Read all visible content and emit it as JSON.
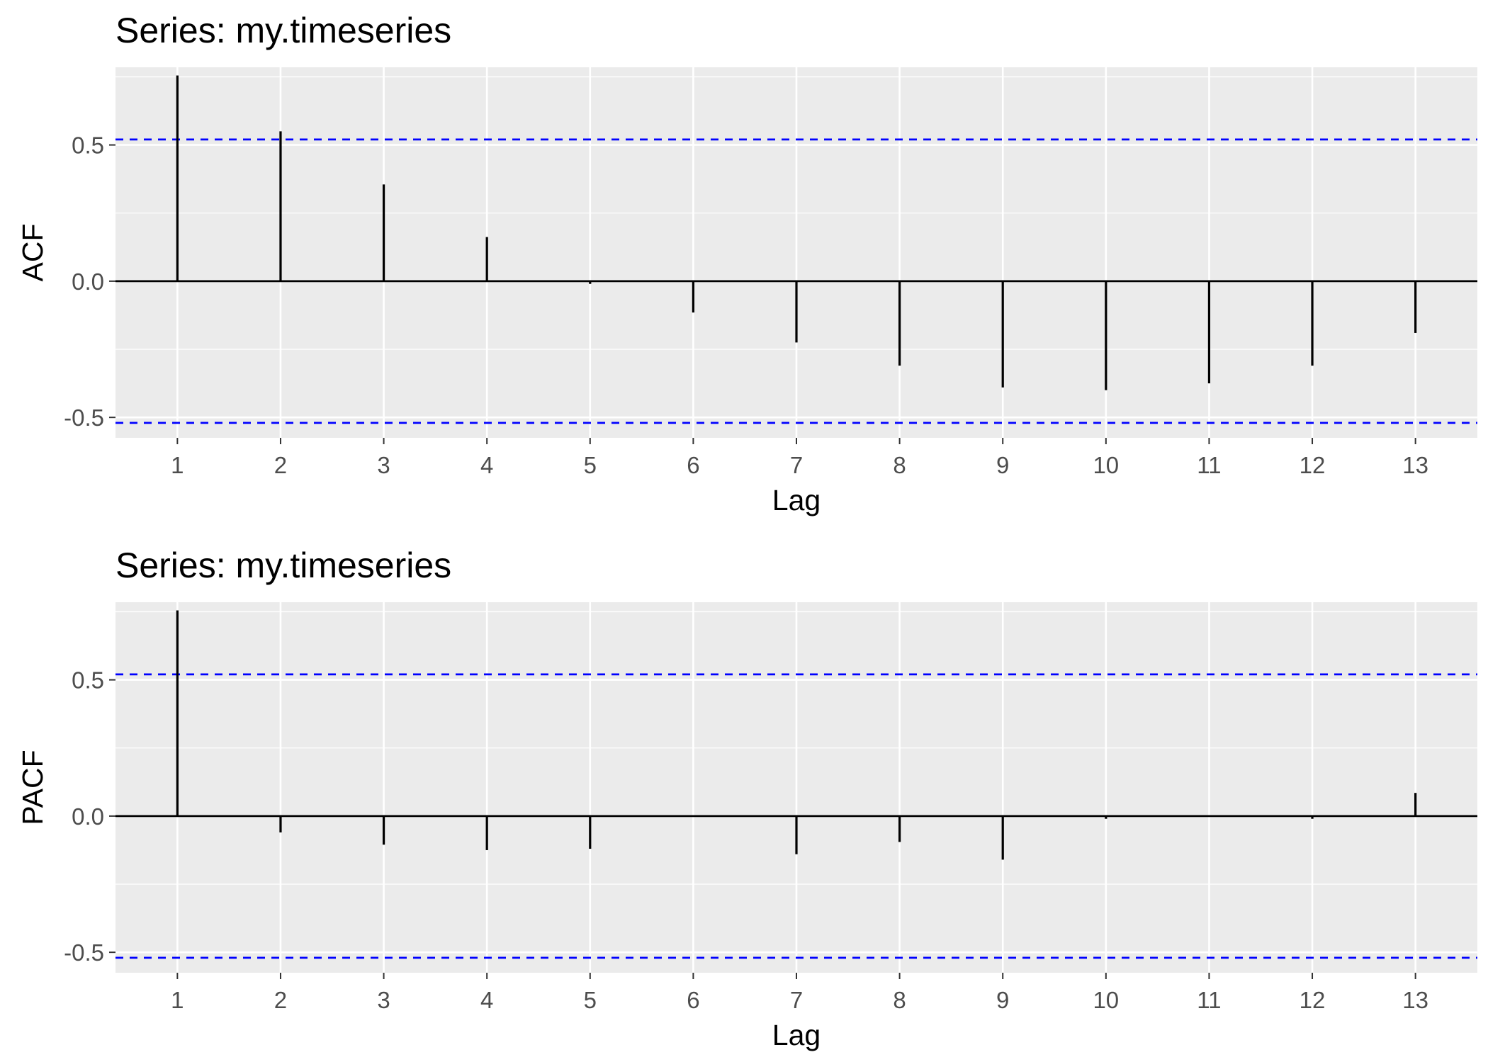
{
  "chart_data": [
    {
      "type": "bar",
      "title": "Series: my.timeseries",
      "xlabel": "Lag",
      "ylabel": "ACF",
      "categories": [
        "1",
        "2",
        "3",
        "4",
        "5",
        "6",
        "7",
        "8",
        "9",
        "10",
        "11",
        "12",
        "13"
      ],
      "x": [
        1,
        2,
        3,
        4,
        5,
        6,
        7,
        8,
        9,
        10,
        11,
        12,
        13
      ],
      "values": [
        0.755,
        0.55,
        0.355,
        0.162,
        -0.01,
        -0.115,
        -0.225,
        -0.31,
        -0.39,
        -0.4,
        -0.375,
        -0.31,
        -0.19
      ],
      "yticks": [
        -0.5,
        0.0,
        0.5
      ],
      "ytick_labels": [
        "-0.5",
        "0.0",
        "0.5"
      ],
      "ylim": [
        -0.575,
        0.785
      ],
      "xlim": [
        0.4,
        13.6
      ],
      "confidence_bounds": [
        -0.52,
        0.52
      ],
      "grid": true,
      "colors": {
        "bars": "#000000",
        "bounds": "#0000ff",
        "panel": "#ebebeb",
        "grid": "#ffffff"
      }
    },
    {
      "type": "bar",
      "title": "Series: my.timeseries",
      "xlabel": "Lag",
      "ylabel": "PACF",
      "categories": [
        "1",
        "2",
        "3",
        "4",
        "5",
        "6",
        "7",
        "8",
        "9",
        "10",
        "11",
        "12",
        "13"
      ],
      "x": [
        1,
        2,
        3,
        4,
        5,
        6,
        7,
        8,
        9,
        10,
        11,
        12,
        13
      ],
      "values": [
        0.755,
        -0.06,
        -0.105,
        -0.125,
        -0.12,
        0.0,
        -0.14,
        -0.095,
        -0.16,
        -0.01,
        0.0,
        -0.01,
        0.085
      ],
      "yticks": [
        -0.5,
        0.0,
        0.5
      ],
      "ytick_labels": [
        "-0.5",
        "0.0",
        "0.5"
      ],
      "ylim": [
        -0.575,
        0.785
      ],
      "xlim": [
        0.4,
        13.6
      ],
      "confidence_bounds": [
        -0.52,
        0.52
      ],
      "grid": true,
      "colors": {
        "bars": "#000000",
        "bounds": "#0000ff",
        "panel": "#ebebeb",
        "grid": "#ffffff"
      }
    }
  ]
}
